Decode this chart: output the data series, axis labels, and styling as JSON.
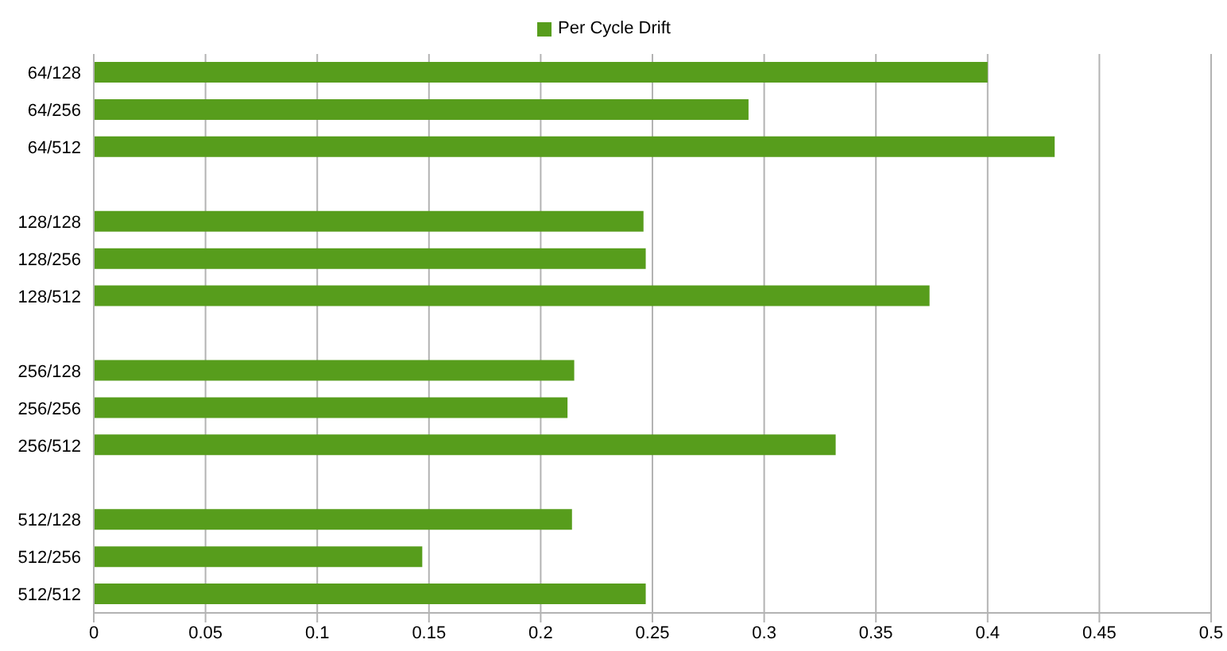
{
  "chart_data": {
    "type": "bar",
    "orientation": "horizontal",
    "categories": [
      "64/128",
      "64/256",
      "64/512",
      null,
      "128/128",
      "128/256",
      "128/512",
      null,
      "256/128",
      "256/256",
      "256/512",
      null,
      "512/128",
      "512/256",
      "512/512"
    ],
    "series": [
      {
        "name": "Per Cycle Drift",
        "color": "#579d1c",
        "values": [
          0.4,
          0.293,
          0.43,
          null,
          0.246,
          0.247,
          0.374,
          null,
          0.215,
          0.212,
          0.332,
          null,
          0.214,
          0.147,
          0.247
        ]
      }
    ],
    "xlim": [
      0,
      0.5
    ],
    "xticks": [
      0,
      0.05,
      0.1,
      0.15,
      0.2,
      0.25,
      0.3,
      0.35,
      0.4,
      0.45,
      0.5
    ],
    "grid": "x",
    "legend": "top"
  }
}
